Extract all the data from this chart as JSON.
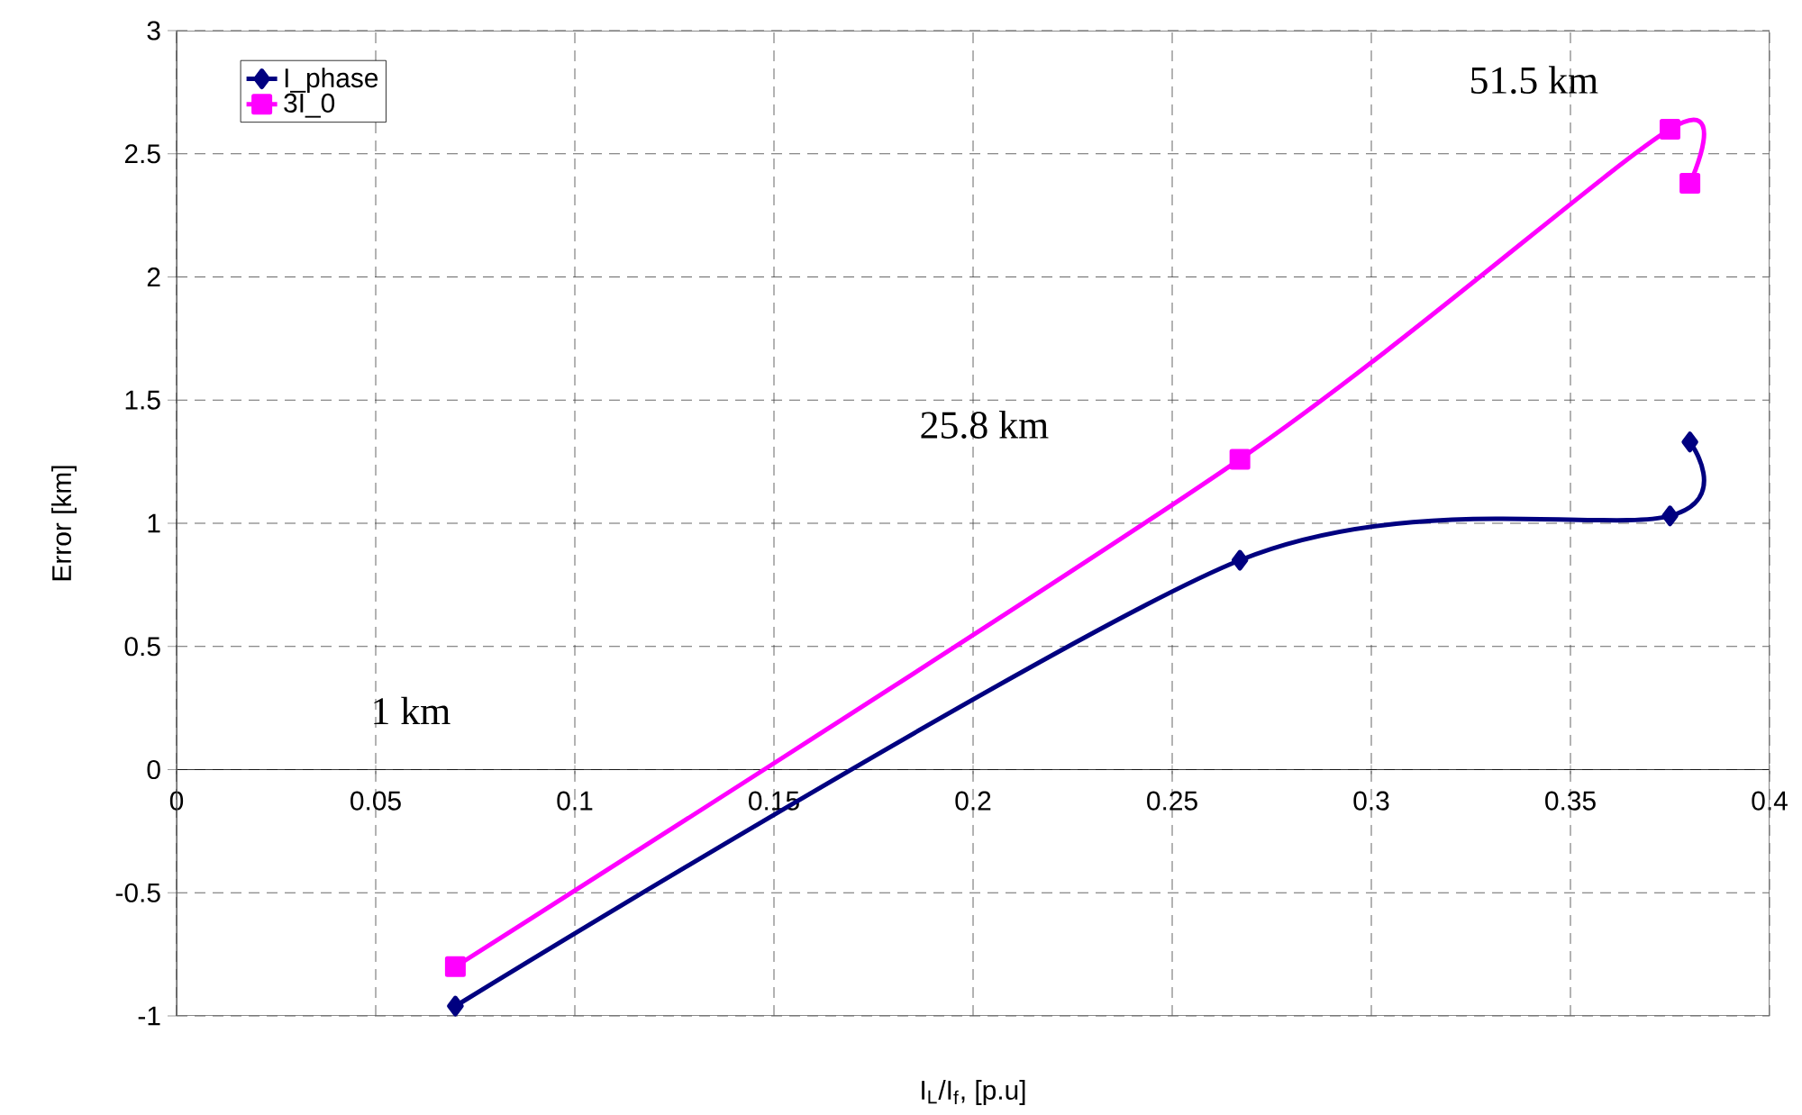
{
  "chart_data": {
    "type": "line",
    "xlabel": "I$_{L}$/I$_{f}$,  [p.u]",
    "ylabel": "Error [km]",
    "xlim": [
      0,
      0.4
    ],
    "ylim": [
      -1,
      3
    ],
    "xticks": [
      0,
      0.05,
      0.1,
      0.15,
      0.2,
      0.25,
      0.3,
      0.35,
      0.4
    ],
    "yticks": [
      -1,
      -0.5,
      0,
      0.5,
      1,
      1.5,
      2,
      2.5,
      3
    ],
    "grid": true,
    "legend": "top left",
    "line_style": "solid",
    "series": [
      {
        "name": "I_phase",
        "color": "#000080",
        "marker": "diamond",
        "x": [
          0.07,
          0.267,
          0.375,
          0.38
        ],
        "values": [
          -0.96,
          0.85,
          1.03,
          1.33
        ]
      },
      {
        "name": "3I_0",
        "color": "#ff00ff",
        "marker": "square",
        "x": [
          0.07,
          0.267,
          0.375,
          0.38
        ],
        "values": [
          -0.8,
          1.26,
          2.6,
          2.38
        ]
      }
    ],
    "annotations": [
      "51.5 km",
      "25.8 km",
      "1 km"
    ]
  }
}
